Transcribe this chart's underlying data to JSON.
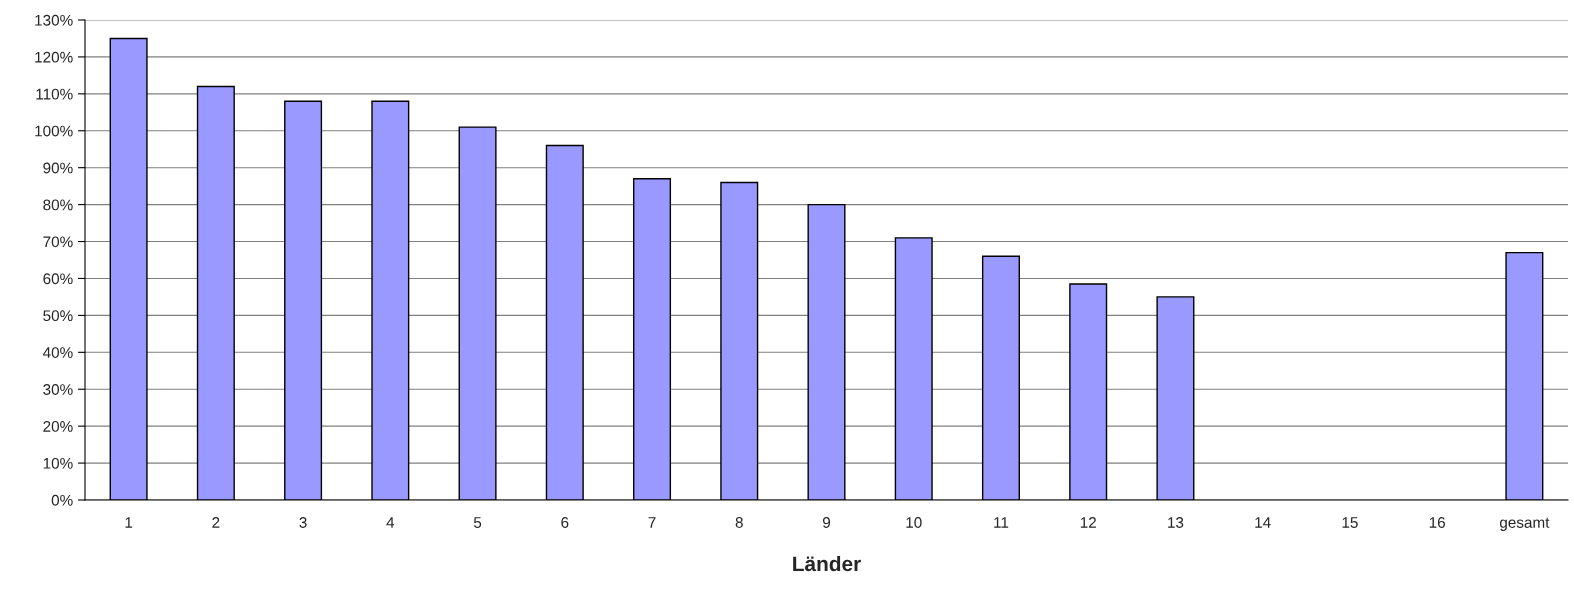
{
  "chart_data": {
    "type": "bar",
    "xlabel": "Länder",
    "categories": [
      "1",
      "2",
      "3",
      "4",
      "5",
      "6",
      "7",
      "8",
      "9",
      "10",
      "11",
      "12",
      "13",
      "14",
      "15",
      "16",
      "gesamt"
    ],
    "values": [
      125,
      112,
      108,
      108,
      101,
      96,
      87,
      86,
      80,
      71,
      66,
      58.5,
      55,
      null,
      null,
      null,
      67
    ],
    "color": "#9999ff",
    "ylim": [
      0,
      130
    ],
    "yticks": [
      {
        "value": 0,
        "label": "0%"
      },
      {
        "value": 10,
        "label": "10%"
      },
      {
        "value": 20,
        "label": "20%"
      },
      {
        "value": 30,
        "label": "30%"
      },
      {
        "value": 40,
        "label": "40%"
      },
      {
        "value": 50,
        "label": "50%"
      },
      {
        "value": 60,
        "label": "60%"
      },
      {
        "value": 70,
        "label": "70%"
      },
      {
        "value": 80,
        "label": "80%"
      },
      {
        "value": 90,
        "label": "90%"
      },
      {
        "value": 100,
        "label": "100%"
      },
      {
        "value": 110,
        "label": "110%"
      },
      {
        "value": 120,
        "label": "120%"
      },
      {
        "value": 130,
        "label": "130%"
      }
    ],
    "grid": "y",
    "legend": false
  }
}
